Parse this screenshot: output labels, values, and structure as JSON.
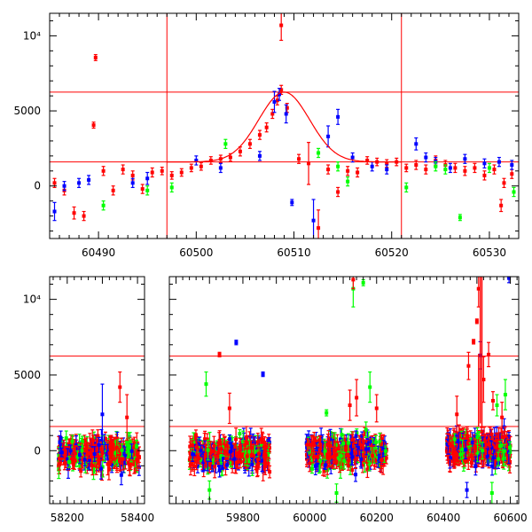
{
  "chart_data": [
    {
      "type": "scatter",
      "title": "",
      "xlabel": "",
      "ylabel": "",
      "xlim": [
        60485,
        60533
      ],
      "ylim": [
        -3500,
        11500
      ],
      "xticks": [
        {
          "value": 60490,
          "label": "60490"
        },
        {
          "value": 60500,
          "label": "60500"
        },
        {
          "value": 60510,
          "label": "60510"
        },
        {
          "value": 60520,
          "label": "60520"
        },
        {
          "value": 60530,
          "label": "60530"
        }
      ],
      "yticks": [
        {
          "value": 0,
          "label": "0"
        },
        {
          "value": 5000,
          "label": "5000"
        },
        {
          "value": 10000,
          "label": "10⁴"
        }
      ],
      "hlines": [
        1600,
        6250
      ],
      "vlines": [
        60497,
        60521
      ],
      "model_curve": {
        "baseline": 1600,
        "peak": 6250,
        "t0": 60509,
        "width": 2.6,
        "color": "#ff0000"
      },
      "series": [
        {
          "color": "#ff0000",
          "points": [
            [
              60485.5,
              200,
              300
            ],
            [
              60486.5,
              -300,
              300
            ],
            [
              60487.5,
              -1800,
              400
            ],
            [
              60488.5,
              -2000,
              300
            ],
            [
              60489.5,
              4050,
              200
            ],
            [
              60489.7,
              8550,
              200
            ],
            [
              60490.5,
              1000,
              300
            ],
            [
              60491.5,
              -300,
              300
            ],
            [
              60492.5,
              1100,
              300
            ],
            [
              60493.5,
              700,
              300
            ],
            [
              60494.5,
              -200,
              300
            ],
            [
              60495.5,
              900,
              300
            ],
            [
              60496.5,
              1000,
              250
            ],
            [
              60497.5,
              700,
              250
            ],
            [
              60498.5,
              900,
              250
            ],
            [
              60499.5,
              1200,
              250
            ],
            [
              60500.5,
              1300,
              250
            ],
            [
              60501.5,
              1700,
              250
            ],
            [
              60502.5,
              1800,
              250
            ],
            [
              60503.5,
              1900,
              250
            ],
            [
              60504.5,
              2300,
              300
            ],
            [
              60505.5,
              2800,
              300
            ],
            [
              60506.5,
              3400,
              300
            ],
            [
              60507.2,
              3900,
              300
            ],
            [
              60507.8,
              4800,
              300
            ],
            [
              60508.3,
              5700,
              300
            ],
            [
              60508.7,
              6400,
              300
            ],
            [
              60508.7,
              10700,
              1000
            ],
            [
              60509.3,
              5200,
              300
            ],
            [
              60510.5,
              1800,
              300
            ],
            [
              60511.5,
              1500,
              1400
            ],
            [
              60512.5,
              -2800,
              1200
            ],
            [
              60513.5,
              1100,
              300
            ],
            [
              60514.5,
              -400,
              300
            ],
            [
              60515.5,
              1000,
              300
            ],
            [
              60516.5,
              900,
              300
            ],
            [
              60517.5,
              1700,
              250
            ],
            [
              60518.5,
              1600,
              250
            ],
            [
              60519.5,
              1500,
              250
            ],
            [
              60520.5,
              1600,
              250
            ],
            [
              60521.5,
              1200,
              250
            ],
            [
              60522.5,
              1400,
              300
            ],
            [
              60523.5,
              1100,
              300
            ],
            [
              60524.5,
              1700,
              300
            ],
            [
              60525.5,
              1400,
              300
            ],
            [
              60526.5,
              1200,
              300
            ],
            [
              60527.5,
              1000,
              300
            ],
            [
              60528.5,
              1200,
              300
            ],
            [
              60529.5,
              700,
              300
            ],
            [
              60530.5,
              1100,
              300
            ],
            [
              60531.2,
              -1300,
              400
            ],
            [
              60531.5,
              200,
              300
            ],
            [
              60532.3,
              800,
              300
            ]
          ]
        },
        {
          "color": "#0000ff",
          "points": [
            [
              60485.5,
              -1700,
              600
            ],
            [
              60486.5,
              0,
              300
            ],
            [
              60488,
              200,
              300
            ],
            [
              60489,
              400,
              300
            ],
            [
              60493.5,
              200,
              300
            ],
            [
              60495,
              500,
              400
            ],
            [
              60500,
              1700,
              300
            ],
            [
              60502.5,
              1200,
              300
            ],
            [
              60506.5,
              2000,
              300
            ],
            [
              60508,
              5600,
              700
            ],
            [
              60508.5,
              6100,
              400
            ],
            [
              60509.2,
              4800,
              600
            ],
            [
              60509.8,
              -1100,
              200
            ],
            [
              60512,
              -2300,
              1400
            ],
            [
              60513.5,
              3300,
              700
            ],
            [
              60514.5,
              4600,
              500
            ],
            [
              60516,
              1900,
              300
            ],
            [
              60518,
              1300,
              300
            ],
            [
              60519.5,
              1100,
              300
            ],
            [
              60522.5,
              2800,
              400
            ],
            [
              60523.5,
              1900,
              300
            ],
            [
              60524.5,
              1600,
              300
            ],
            [
              60526,
              1200,
              300
            ],
            [
              60527.5,
              1800,
              300
            ],
            [
              60529.5,
              1500,
              300
            ],
            [
              60531,
              1600,
              300
            ],
            [
              60532.3,
              1400,
              300
            ]
          ]
        },
        {
          "color": "#00ff00",
          "points": [
            [
              60490.5,
              -1300,
              300
            ],
            [
              60495,
              -300,
              300
            ],
            [
              60497.5,
              -100,
              300
            ],
            [
              60503,
              2800,
              300
            ],
            [
              60512.5,
              2200,
              300
            ],
            [
              60514.5,
              1300,
              300
            ],
            [
              60515.5,
              300,
              300
            ],
            [
              60521.5,
              -100,
              300
            ],
            [
              60524.5,
              1300,
              300
            ],
            [
              60525.5,
              1100,
              300
            ],
            [
              60527,
              -2100,
              200
            ],
            [
              60530,
              1200,
              300
            ],
            [
              60532.5,
              -400,
              300
            ]
          ]
        }
      ]
    },
    {
      "type": "scatter",
      "title": "",
      "xlabel": "",
      "ylabel": "",
      "ylim": [
        -3500,
        11500
      ],
      "segments": [
        {
          "xlim": [
            58150,
            58420
          ]
        },
        {
          "xlim": [
            59580,
            60625
          ]
        }
      ],
      "xticks": [
        {
          "value": 58200,
          "label": "58200"
        },
        {
          "value": 58400,
          "label": "58400"
        },
        {
          "value": 59800,
          "label": "59800"
        },
        {
          "value": 60000,
          "label": "60000"
        },
        {
          "value": 60200,
          "label": "60200"
        },
        {
          "value": 60400,
          "label": "60400"
        },
        {
          "value": 60600,
          "label": "60600"
        }
      ],
      "yticks": [
        {
          "value": 0,
          "label": "0"
        },
        {
          "value": 5000,
          "label": "5000"
        },
        {
          "value": 10000,
          "label": "10⁴"
        }
      ],
      "hlines": [
        1600,
        6250
      ],
      "clusters": [
        {
          "xrange": [
            58175,
            58405
          ],
          "center": -200,
          "spread": 900
        },
        {
          "xrange": [
            59640,
            59880
          ],
          "center": -200,
          "spread": 900
        },
        {
          "xrange": [
            59990,
            60230
          ],
          "center": -100,
          "spread": 900
        },
        {
          "xrange": [
            60410,
            60600
          ],
          "center": 100,
          "spread": 900
        }
      ],
      "outliers": [
        [
          58300,
          2400,
          2000,
          "#0000ff"
        ],
        [
          58350,
          4200,
          1000,
          "#ff0000"
        ],
        [
          58370,
          2200,
          1500,
          "#ff0000"
        ],
        [
          59730,
          6350,
          150,
          "#ff0000"
        ],
        [
          59780,
          7150,
          150,
          "#0000ff"
        ],
        [
          59860,
          5050,
          150,
          "#0000ff"
        ],
        [
          59690,
          4400,
          800,
          "#00ff00"
        ],
        [
          59760,
          2800,
          1000,
          "#ff0000"
        ],
        [
          59700,
          -2600,
          600,
          "#00ff00"
        ],
        [
          60050,
          2500,
          200,
          "#00ff00"
        ],
        [
          60130,
          10700,
          1200,
          "#00ff00"
        ],
        [
          60130,
          11300,
          600,
          "#ff0000"
        ],
        [
          60160,
          11100,
          200,
          "#00ff00"
        ],
        [
          60120,
          3000,
          1000,
          "#ff0000"
        ],
        [
          60140,
          3500,
          1200,
          "#ff0000"
        ],
        [
          60180,
          4200,
          1000,
          "#00ff00"
        ],
        [
          60200,
          2800,
          900,
          "#ff0000"
        ],
        [
          60080,
          -2800,
          600,
          "#00ff00"
        ],
        [
          60440,
          2400,
          1200,
          "#ff0000"
        ],
        [
          60475,
          5600,
          900,
          "#ff0000"
        ],
        [
          60490,
          7200,
          150,
          "#ff0000"
        ],
        [
          60500,
          8550,
          150,
          "#ff0000"
        ],
        [
          60505,
          10700,
          1200,
          "#ff0000"
        ],
        [
          60520,
          4700,
          1500,
          "#ff0000"
        ],
        [
          60535,
          6350,
          800,
          "#ff0000"
        ],
        [
          60548,
          3300,
          600,
          "#ff0000"
        ],
        [
          60560,
          3000,
          700,
          "#00ff00"
        ],
        [
          60575,
          2200,
          1000,
          "#ff0000"
        ],
        [
          60585,
          3700,
          1000,
          "#00ff00"
        ],
        [
          60510,
          6300,
          900,
          "#0000ff"
        ],
        [
          60545,
          -2800,
          700,
          "#00ff00"
        ],
        [
          60470,
          -2600,
          500,
          "#0000ff"
        ],
        [
          60596,
          11400,
          300,
          "#0000ff"
        ]
      ]
    }
  ]
}
